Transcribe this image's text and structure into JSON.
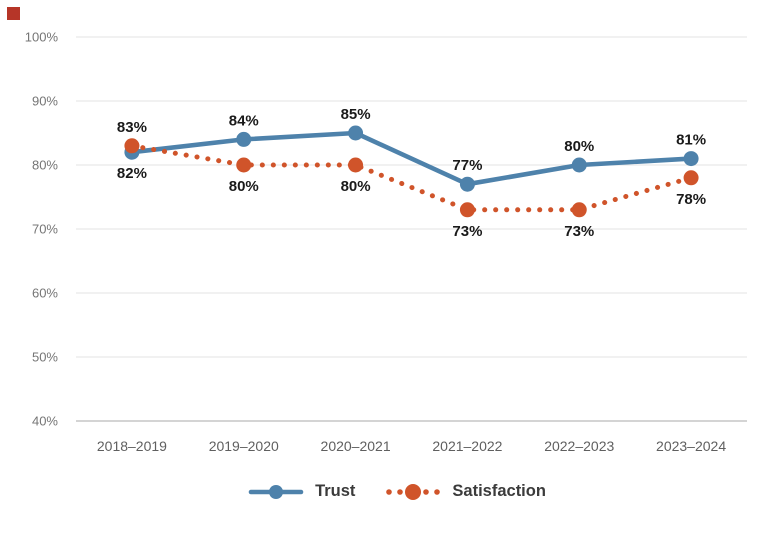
{
  "marker": {
    "style": "background:#b63528",
    "color": "#b63528"
  },
  "chart_data": {
    "type": "line",
    "title": "",
    "xlabel": "",
    "ylabel": "",
    "categories": [
      "2018–2019",
      "2019–2020",
      "2020–2021",
      "2021–2022",
      "2022–2023",
      "2023–2024"
    ],
    "series": [
      {
        "name": "Trust",
        "color": "#4e82ab",
        "style": "solid",
        "values": [
          82,
          84,
          85,
          77,
          80,
          81
        ],
        "labels": [
          "82%",
          "84%",
          "85%",
          "77%",
          "80%",
          "81%"
        ],
        "label_sides": [
          "below",
          "above",
          "above",
          "above",
          "above",
          "above"
        ]
      },
      {
        "name": "Satisfaction",
        "color": "#d0542a",
        "style": "dotted",
        "values": [
          83,
          80,
          80,
          73,
          73,
          78
        ],
        "labels": [
          "83%",
          "80%",
          "80%",
          "73%",
          "73%",
          "78%"
        ],
        "label_sides": [
          "above",
          "below",
          "below",
          "below",
          "below",
          "below"
        ]
      }
    ],
    "yticks": [
      100,
      90,
      80,
      70,
      60,
      50,
      40
    ],
    "ytick_suffix": "%",
    "ylim": [
      40,
      100
    ],
    "grid": true,
    "legend_position": "bottom",
    "colors": {
      "grid": "#e3e3e3",
      "axis": "#a9a9a9",
      "ytick_text": "#757575",
      "xtick_text": "#5f5f5f",
      "data_label": "#1a1a1a",
      "legend_text": "#3b3b3b",
      "background": "#ffffff"
    }
  }
}
